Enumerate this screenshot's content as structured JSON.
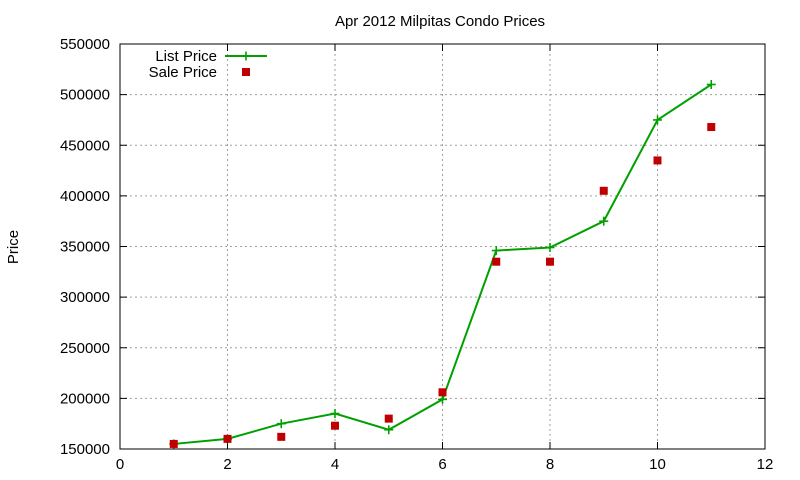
{
  "chart_data": {
    "type": "line",
    "title": "Apr 2012 Milpitas Condo Prices",
    "xlabel": "",
    "ylabel": "Price",
    "xlim": [
      0,
      12
    ],
    "ylim": [
      150000,
      550000
    ],
    "x_ticks": [
      0,
      2,
      4,
      6,
      8,
      10,
      12
    ],
    "y_ticks": [
      150000,
      200000,
      250000,
      300000,
      350000,
      400000,
      450000,
      500000,
      550000
    ],
    "grid": true,
    "legend_position": "top-left",
    "series": [
      {
        "name": "List Price",
        "style": "line-with-plus-markers",
        "color": "#00a000",
        "x": [
          1,
          2,
          3,
          4,
          5,
          6,
          7,
          8,
          9,
          10,
          11
        ],
        "values": [
          155000,
          160000,
          175000,
          185000,
          169000,
          199000,
          346000,
          349000,
          375000,
          475000,
          510000
        ]
      },
      {
        "name": "Sale Price",
        "style": "square-markers",
        "color": "#c00000",
        "x": [
          1,
          2,
          3,
          4,
          5,
          6,
          7,
          8,
          9,
          10,
          11
        ],
        "values": [
          155000,
          160000,
          162000,
          173000,
          180000,
          206000,
          335000,
          335000,
          405000,
          435000,
          468000
        ]
      }
    ]
  }
}
